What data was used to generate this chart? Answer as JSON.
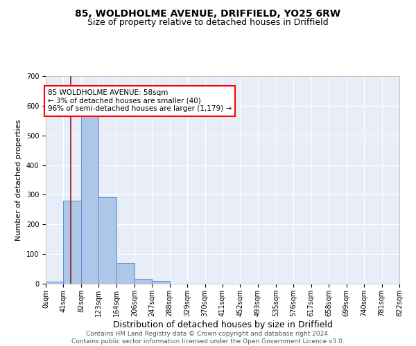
{
  "title": "85, WOLDHOLME AVENUE, DRIFFIELD, YO25 6RW",
  "subtitle": "Size of property relative to detached houses in Driffield",
  "xlabel": "Distribution of detached houses by size in Driffield",
  "ylabel": "Number of detached properties",
  "bin_edges": [
    0,
    41,
    82,
    123,
    164,
    206,
    247,
    288,
    329,
    370,
    411,
    452,
    493,
    535,
    576,
    617,
    658,
    699,
    740,
    781,
    822
  ],
  "bin_counts": [
    8,
    281,
    567,
    291,
    70,
    17,
    10,
    0,
    0,
    0,
    0,
    0,
    0,
    0,
    0,
    0,
    0,
    0,
    0,
    0
  ],
  "bar_color": "#aec6e8",
  "bar_edge_color": "#5b8ed6",
  "property_size": 58,
  "vline_color": "#8b1a1a",
  "annotation_text": "85 WOLDHOLME AVENUE: 58sqm\n← 3% of detached houses are smaller (40)\n96% of semi-detached houses are larger (1,179) →",
  "annotation_box_color": "white",
  "annotation_box_edge": "red",
  "ylim": [
    0,
    700
  ],
  "yticks": [
    0,
    100,
    200,
    300,
    400,
    500,
    600,
    700
  ],
  "background_color": "#e8eef8",
  "footer_line1": "Contains HM Land Registry data © Crown copyright and database right 2024.",
  "footer_line2": "Contains public sector information licensed under the Open Government Licence v3.0.",
  "title_fontsize": 10,
  "subtitle_fontsize": 9,
  "xlabel_fontsize": 9,
  "ylabel_fontsize": 8,
  "tick_fontsize": 7,
  "footer_fontsize": 6.5,
  "annot_fontsize": 7.5
}
